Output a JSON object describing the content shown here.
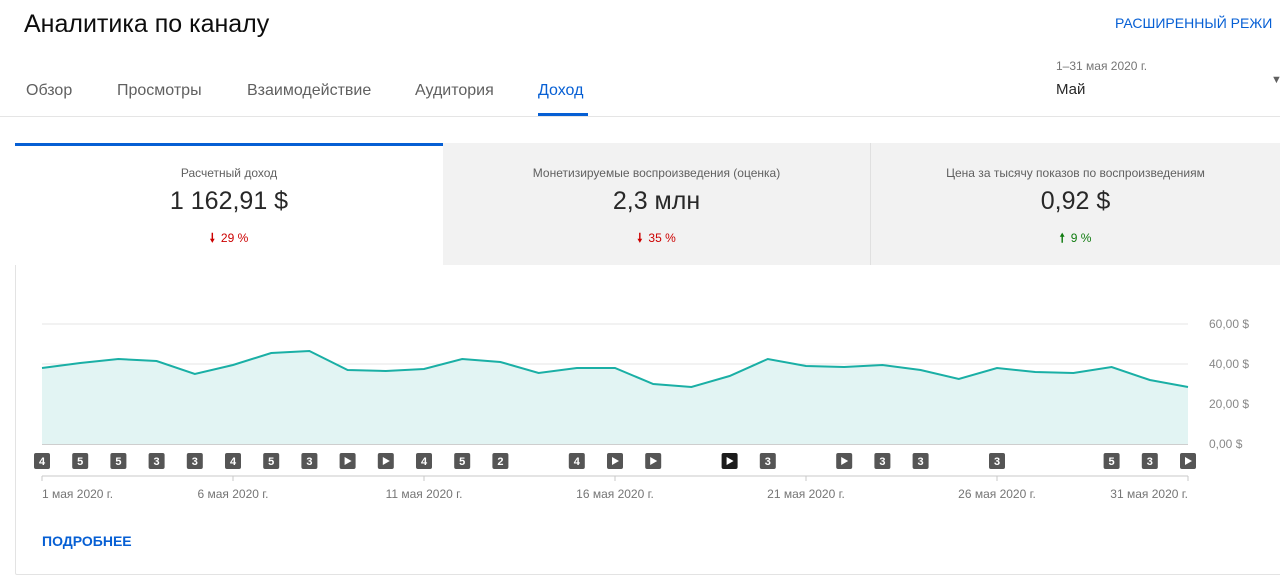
{
  "header": {
    "title": "Аналитика по каналу",
    "advanced_mode": "РАСШИРЕННЫЙ РЕЖИ"
  },
  "tabs": [
    {
      "label": "Обзор"
    },
    {
      "label": "Просмотры"
    },
    {
      "label": "Взаимодействие"
    },
    {
      "label": "Аудитория"
    },
    {
      "label": "Доход"
    }
  ],
  "active_tab": "Доход",
  "date_picker": {
    "range": "1–31 мая 2020 г.",
    "value": "Май"
  },
  "metrics": [
    {
      "label": "Расчетный доход",
      "value": "1 162,91 $",
      "change": "29 %",
      "direction": "down",
      "arrow": "🠗"
    },
    {
      "label": "Монетизируемые воспроизведения (оценка)",
      "value": "2,3 млн",
      "change": "35 %",
      "direction": "down",
      "arrow": "🠗"
    },
    {
      "label": "Цена за тысячу показов по воспроизведениям",
      "value": "0,92 $",
      "change": "9 %",
      "direction": "up",
      "arrow": "🠕"
    }
  ],
  "chart_data": {
    "type": "area",
    "x": [
      "1 мая",
      "2 мая",
      "3 мая",
      "4 мая",
      "5 мая",
      "6 мая",
      "7 мая",
      "8 мая",
      "9 мая",
      "10 мая",
      "11 мая",
      "12 мая",
      "13 мая",
      "14 мая",
      "15 мая",
      "16 мая",
      "17 мая",
      "18 мая",
      "19 мая",
      "20 мая",
      "21 мая",
      "22 мая",
      "23 мая",
      "24 мая",
      "25 мая",
      "26 мая",
      "27 мая",
      "28 мая",
      "29 мая",
      "30 мая",
      "31 мая"
    ],
    "series": [
      {
        "values": [
          38,
          40.5,
          42.5,
          41.5,
          35,
          39.5,
          45.5,
          46.5,
          37,
          36.5,
          37.5,
          42.5,
          41,
          35.5,
          38,
          38,
          30,
          28.5,
          34,
          42.5,
          39,
          38.5,
          39.5,
          37,
          32.5,
          38,
          36,
          35.5,
          38.5,
          32,
          28.5
        ]
      }
    ],
    "ylim": [
      0,
      60
    ],
    "y_ticks": [
      "0,00 $",
      "20,00 $",
      "40,00 $",
      "60,00 $"
    ],
    "x_tick_labels": [
      {
        "day": 1,
        "label": "1 мая 2020 г."
      },
      {
        "day": 6,
        "label": "6 мая 2020 г."
      },
      {
        "day": 11,
        "label": "11 мая 2020 г."
      },
      {
        "day": 16,
        "label": "16 мая 2020 г."
      },
      {
        "day": 21,
        "label": "21 мая 2020 г."
      },
      {
        "day": 26,
        "label": "26 мая 2020 г."
      },
      {
        "day": 31,
        "label": "31 мая 2020 г."
      }
    ],
    "grid": true,
    "line_color": "#1aafa5",
    "fill_color": "#e2f4f3",
    "markers": [
      {
        "day": 1,
        "label": "4",
        "kind": "count"
      },
      {
        "day": 2,
        "label": "5",
        "kind": "count"
      },
      {
        "day": 3,
        "label": "5",
        "kind": "count"
      },
      {
        "day": 4,
        "label": "3",
        "kind": "count"
      },
      {
        "day": 5,
        "label": "3",
        "kind": "count"
      },
      {
        "day": 6,
        "label": "4",
        "kind": "count"
      },
      {
        "day": 7,
        "label": "5",
        "kind": "count"
      },
      {
        "day": 8,
        "label": "3",
        "kind": "count"
      },
      {
        "day": 9,
        "label": "",
        "kind": "play"
      },
      {
        "day": 10,
        "label": "",
        "kind": "play"
      },
      {
        "day": 11,
        "label": "4",
        "kind": "count"
      },
      {
        "day": 12,
        "label": "5",
        "kind": "count"
      },
      {
        "day": 13,
        "label": "2",
        "kind": "count"
      },
      {
        "day": 15,
        "label": "4",
        "kind": "count"
      },
      {
        "day": 16,
        "label": "",
        "kind": "play"
      },
      {
        "day": 17,
        "label": "",
        "kind": "play"
      },
      {
        "day": 19,
        "label": "",
        "kind": "play-dark"
      },
      {
        "day": 20,
        "label": "3",
        "kind": "count"
      },
      {
        "day": 22,
        "label": "",
        "kind": "play"
      },
      {
        "day": 23,
        "label": "3",
        "kind": "count"
      },
      {
        "day": 24,
        "label": "3",
        "kind": "count"
      },
      {
        "day": 26,
        "label": "3",
        "kind": "count"
      },
      {
        "day": 29,
        "label": "5",
        "kind": "count"
      },
      {
        "day": 30,
        "label": "3",
        "kind": "count"
      },
      {
        "day": 31,
        "label": "",
        "kind": "play"
      }
    ]
  },
  "footer": {
    "more_link": "ПОДРОБНЕЕ"
  }
}
